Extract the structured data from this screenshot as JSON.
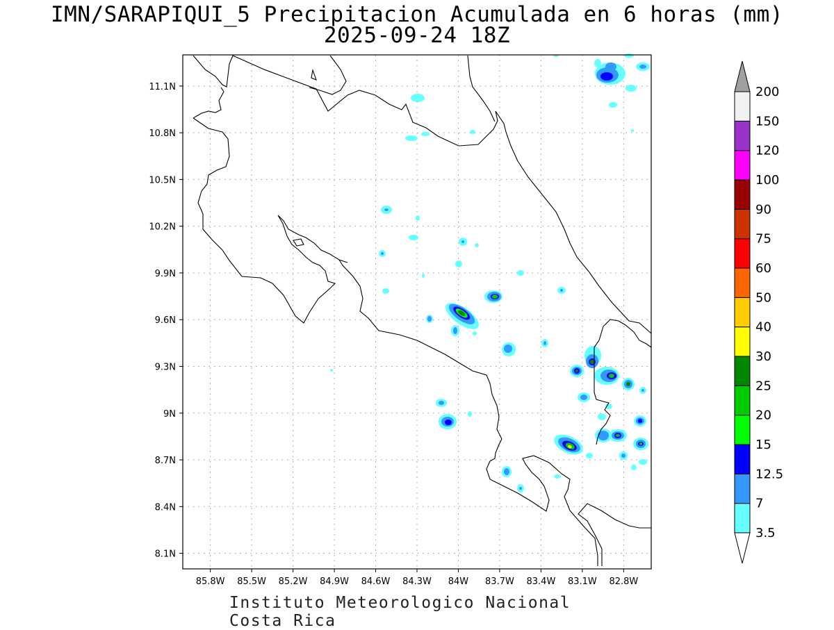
{
  "title_line1": "IMN/SARAPIQUI_5 Precipitacion Acumulada en 6 horas (mm)",
  "title_line2": "2025-09-24 18Z",
  "footer": "Instituto Meteorologico Nacional Costa Rica",
  "map": {
    "lon_range": [
      -86.0,
      -82.6
    ],
    "lat_range": [
      8.0,
      11.3
    ],
    "lon_ticks": [
      "85.8W",
      "85.5W",
      "85.2W",
      "84.9W",
      "84.6W",
      "84.3W",
      "84W",
      "83.7W",
      "83.4W",
      "83.1W",
      "82.8W"
    ],
    "lon_values": [
      -85.8,
      -85.5,
      -85.2,
      -84.9,
      -84.6,
      -84.3,
      -84.0,
      -83.7,
      -83.4,
      -83.1,
      -82.8
    ],
    "lat_ticks": [
      "11.1N",
      "10.8N",
      "10.5N",
      "10.2N",
      "9.9N",
      "9.6N",
      "9.3N",
      "9N",
      "8.7N",
      "8.4N",
      "8.1N"
    ],
    "lat_values": [
      11.1,
      10.8,
      10.5,
      10.2,
      9.9,
      9.6,
      9.3,
      9.0,
      8.7,
      8.4,
      8.1
    ],
    "grid": "dotted"
  },
  "colorbar": {
    "labels": [
      "3.5",
      "7",
      "12.5",
      "15",
      "20",
      "25",
      "30",
      "40",
      "50",
      "60",
      "75",
      "90",
      "100",
      "120",
      "150",
      "200"
    ],
    "colors": [
      "#66ffff",
      "#3399ff",
      "#0000ff",
      "#00ff00",
      "#00cc00",
      "#008800",
      "#ffff00",
      "#ffcc00",
      "#ff6600",
      "#ff0000",
      "#cc3300",
      "#990000",
      "#ff00ff",
      "#9933cc",
      "#f2f2f2"
    ],
    "top_arrow_color": "#a0a0a0",
    "bottom_arrow_color": "#ffffff"
  },
  "precip_cells": [
    {
      "lon": -83.92,
      "lat": 9.64,
      "max": "25"
    },
    {
      "lon": -83.68,
      "lat": 9.75,
      "max": "20"
    },
    {
      "lon": -84.02,
      "lat": 8.92,
      "max": "12.5"
    },
    {
      "lon": -83.08,
      "lat": 8.79,
      "max": "30"
    },
    {
      "lon": -82.88,
      "lat": 9.25,
      "max": "20"
    },
    {
      "lon": -82.98,
      "lat": 9.33,
      "max": "25"
    },
    {
      "lon": -83.07,
      "lat": 9.27,
      "max": "25"
    },
    {
      "lon": -82.76,
      "lat": 8.86,
      "max": "20"
    },
    {
      "lon": -82.66,
      "lat": 8.8,
      "max": "20"
    },
    {
      "lon": -82.78,
      "lat": 11.15,
      "max": "12.5"
    },
    {
      "lon": -83.58,
      "lat": 9.42,
      "max": "7"
    },
    {
      "lon": -83.55,
      "lat": 8.62,
      "max": "7"
    },
    {
      "lon": -82.75,
      "lat": 9.18,
      "max": "12.5"
    },
    {
      "lon": -82.63,
      "lat": 8.96,
      "max": "7"
    }
  ]
}
